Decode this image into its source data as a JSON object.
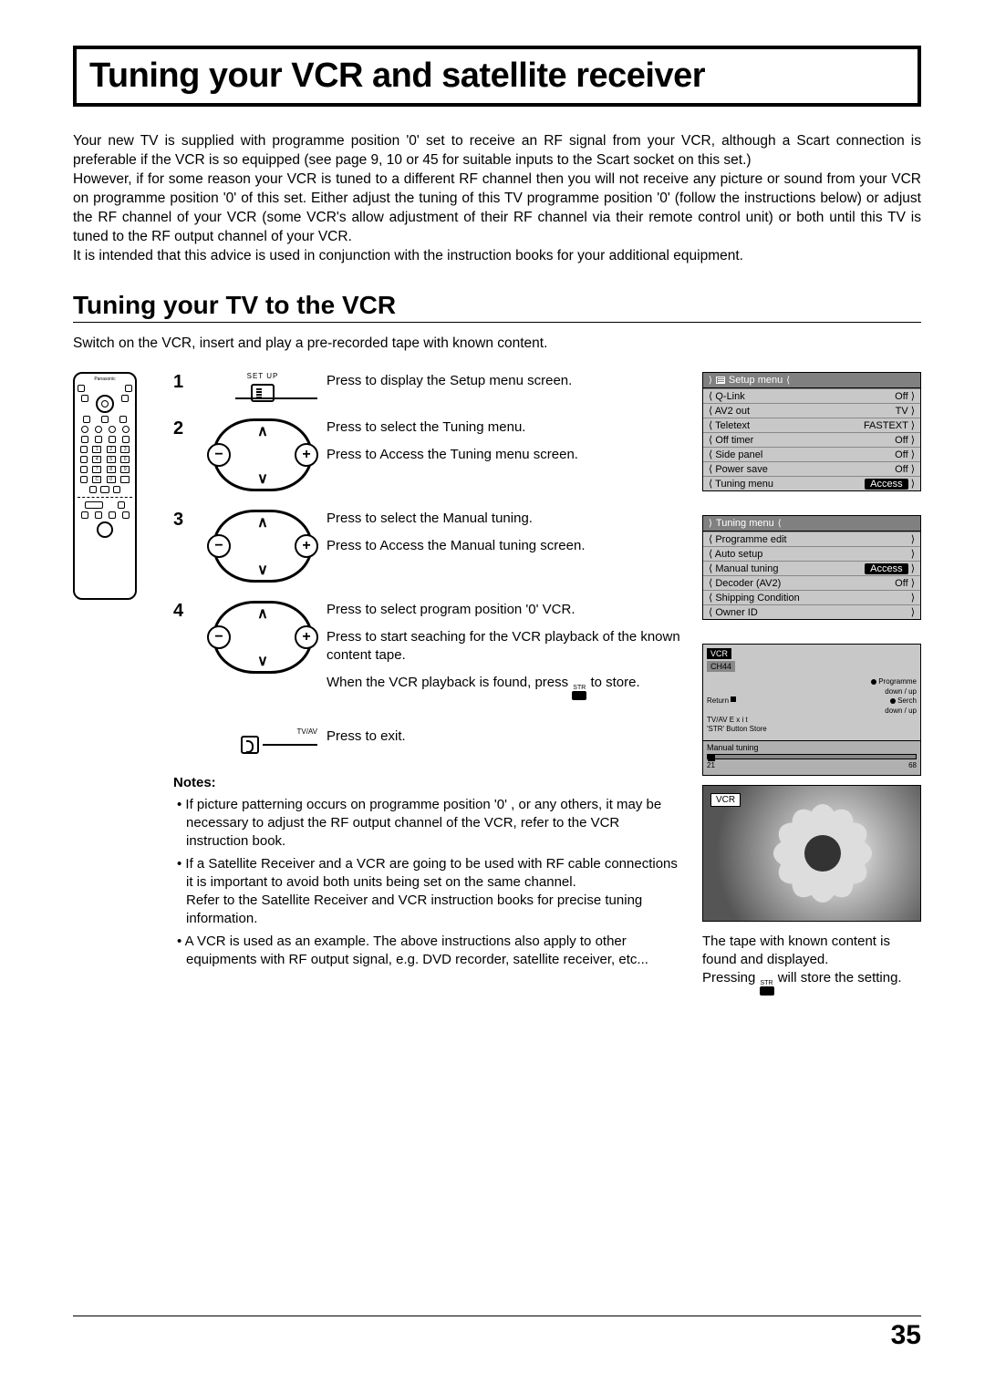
{
  "page": {
    "title": "Tuning your VCR and satellite receiver",
    "number": "35"
  },
  "intro": {
    "p1": "Your new TV is supplied with programme position '0' set to receive an RF signal from your VCR, although a Scart connection is preferable if the VCR is so equipped (see page 9, 10 or 45 for suitable inputs to the Scart socket on this set.)",
    "p2": "However, if for some reason your VCR is tuned to a different RF channel then you will not receive any picture or sound from your VCR on programme position '0' of this set. Either adjust the tuning of this TV programme position '0' (follow the instructions below) or adjust the RF channel of your VCR (some VCR's allow adjustment of their RF channel via their remote control unit) or both until this TV is tuned to the RF output channel of your VCR.",
    "p3": "It is intended that this advice is used in conjunction with the instruction books for your additional equipment."
  },
  "section": {
    "subhead": "Tuning your TV to the VCR",
    "lead": "Switch on the VCR, insert and play a pre-recorded tape with known content."
  },
  "remote": {
    "brand": "Panasonic"
  },
  "steps": {
    "s1": {
      "num": "1",
      "icon_label": "SET UP",
      "t1": "Press to display the Setup menu screen."
    },
    "s2": {
      "num": "2",
      "t1": "Press to select the Tuning menu.",
      "t2": "Press to Access the Tuning menu screen."
    },
    "s3": {
      "num": "3",
      "t1": "Press to select the Manual tuning.",
      "t2": "Press to Access the Manual tuning screen."
    },
    "s4": {
      "num": "4",
      "t1": "Press to select program position '0' VCR.",
      "t2": "Press to start seaching for the VCR playback of the known content tape.",
      "t3a": "When the VCR playback is found, press ",
      "t3b": " to store.",
      "str_label": "STR"
    },
    "s5": {
      "icon_label": "TV/AV",
      "t1": "Press to exit."
    }
  },
  "setup_menu": {
    "title": "Setup menu",
    "rows": [
      {
        "l": "Q-Link",
        "r": "Off"
      },
      {
        "l": "AV2 out",
        "r": "TV"
      },
      {
        "l": "Teletext",
        "r": "FASTEXT"
      },
      {
        "l": "Off timer",
        "r": "Off"
      },
      {
        "l": "Side panel",
        "r": "Off"
      },
      {
        "l": "Power save",
        "r": "Off"
      },
      {
        "l": "Tuning menu",
        "r": "Access",
        "hl": true
      }
    ]
  },
  "tuning_menu": {
    "title": "Tuning menu",
    "rows": [
      {
        "l": "Programme edit",
        "r": ""
      },
      {
        "l": "Auto setup",
        "r": ""
      },
      {
        "l": "Manual tuning",
        "r": "Access",
        "hl": true
      },
      {
        "l": "Decoder (AV2)",
        "r": "Off"
      },
      {
        "l": "Shipping Condition",
        "r": ""
      },
      {
        "l": "Owner ID",
        "r": ""
      }
    ]
  },
  "manual_panel": {
    "vcr": "VCR",
    "ch": "CH44",
    "legend": {
      "l1": "Programme",
      "l2": "down / up",
      "l3": "Serch",
      "l4": "down / up",
      "ret": "Return",
      "exit": "TV/AV      E x i t",
      "store": "'STR'  Button     Store"
    },
    "slider_title": "Manual tuning",
    "slider_min": "21",
    "slider_max": "68"
  },
  "vcr_image": {
    "label": "VCR"
  },
  "caption": {
    "l1": "The tape with known content is found and displayed.",
    "l2a": "Pressing ",
    "l2b": " will store the setting.",
    "str": "STR"
  },
  "notes": {
    "heading": "Notes:",
    "n1": "If picture patterning occurs on programme position '0' , or any others, it may be necessary to adjust the RF output channel of the VCR, refer to the VCR instruction book.",
    "n2": "If a Satellite Receiver and a VCR are going to be used with RF cable connections it is important to avoid both units being set on the same channel.",
    "n2b": "Refer to the Satellite Receiver and VCR instruction books for precise tuning information.",
    "n3": "A VCR is used as an example. The above instructions also apply to other equipments with RF output signal, e.g. DVD recorder, satellite receiver, etc..."
  }
}
